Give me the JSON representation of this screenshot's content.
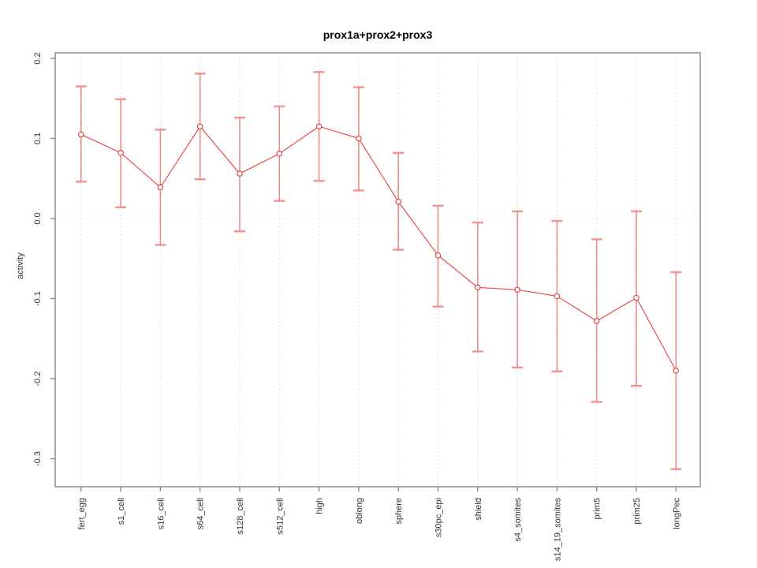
{
  "title": "prox1a+prox2+prox3",
  "ylabel": "activity",
  "chart_data": {
    "type": "line",
    "subtype": "points-with-error-bars",
    "title": "prox1a+prox2+prox3",
    "xlabel": "",
    "ylabel": "activity",
    "categories": [
      "fert_egg",
      "s1_cell",
      "s16_cell",
      "s64_cell",
      "s128_cell",
      "s512_cell",
      "high",
      "oblong",
      "sphere",
      "s30pc_epi",
      "shield",
      "s4_somites",
      "s14_19_somites",
      "prim5",
      "prim25",
      "longPec"
    ],
    "series": [
      {
        "name": "activity",
        "values": [
          0.105,
          0.082,
          0.039,
          0.115,
          0.056,
          0.081,
          0.115,
          0.1,
          0.021,
          -0.046,
          -0.086,
          -0.089,
          -0.097,
          -0.128,
          -0.099,
          -0.19
        ],
        "err_lo": [
          0.046,
          0.014,
          -0.033,
          0.049,
          -0.016,
          0.022,
          0.047,
          0.035,
          -0.039,
          -0.11,
          -0.166,
          -0.186,
          -0.191,
          -0.229,
          -0.209,
          -0.313
        ],
        "err_hi": [
          0.165,
          0.149,
          0.111,
          0.181,
          0.126,
          0.14,
          0.183,
          0.164,
          0.082,
          0.016,
          -0.005,
          0.009,
          -0.003,
          -0.026,
          0.009,
          -0.067
        ]
      }
    ],
    "yticks": [
      {
        "label": "0.2",
        "value": 0.2
      },
      {
        "label": "0.1",
        "value": 0.1
      },
      {
        "label": "0.0",
        "value": 0.0
      },
      {
        "label": "-0.1",
        "value": -0.1
      },
      {
        "label": "-0.2",
        "value": -0.2
      },
      {
        "label": "-0.3",
        "value": -0.3
      }
    ],
    "ylim": [
      -0.33,
      0.21
    ],
    "grid": {
      "vertical_per_category": true,
      "zero_line_dotted": true
    },
    "legend": "none",
    "marker": "open-circle",
    "x_label_rotation_deg": 90,
    "colors": {
      "point": "#e13b3b",
      "line": "#ee3f3f",
      "error_bar": "#e84444",
      "error_cap": "#f08484",
      "axis": "#888888",
      "grid": "#dcdcdc",
      "tick_text": "#333333",
      "title_text": "#000000",
      "background": "#ffffff"
    }
  }
}
